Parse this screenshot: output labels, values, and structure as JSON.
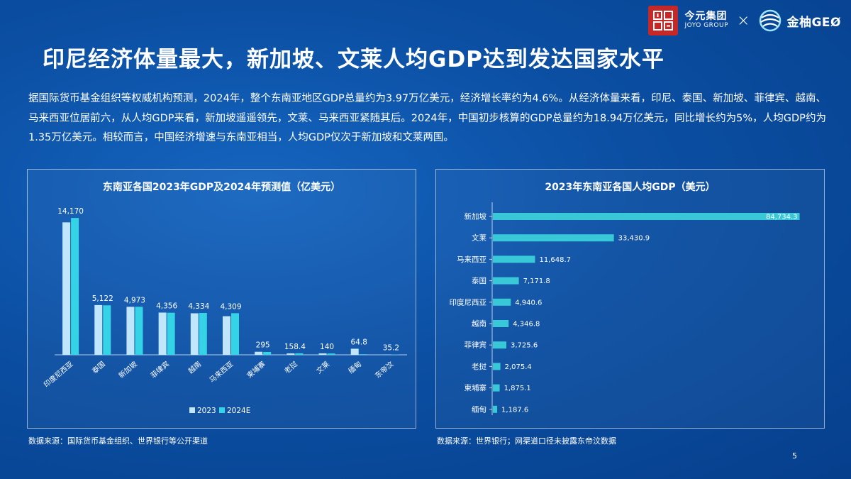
{
  "header": {
    "brand_cn": "今元集团",
    "brand_en": "JOYO GROUP",
    "times": "×",
    "partner": "金柚GEØ"
  },
  "title": "印尼经济体量最大，新加坡、文莱人均GDP达到发达国家水平",
  "paragraph": "据国际货币基金组织等权威机构预测，2024年，整个东南亚地区GDP总量约为3.97万亿美元，经济增长率约为4.6%。从经济体量来看，印尼、泰国、新加坡、菲律宾、越南、马来西亚位居前六，从人均GDP来看，新加坡遥遥领先，文莱、马来西亚紧随其后。2024年，中国初步核算的GDP总量约为18.94万亿美元，同比增长约为5%，人均GDP约为1.35万亿美元。相较而言，中国经济增速与东南亚相当，人均GDP仅次于新加坡和文莱两国。",
  "colors": {
    "bar_2023": "#bfe6fb",
    "bar_2024": "#35d3e6",
    "bar_gdp_pc": "#38c8d8"
  },
  "chart_data": [
    {
      "type": "bar",
      "title": "东南亚各国2023年GDP及2024年预测值（亿美元）",
      "categories": [
        "印度尼西亚",
        "泰国",
        "新加坡",
        "菲律宾",
        "越南",
        "马来西亚",
        "柬埔寨",
        "老挝",
        "文莱",
        "缅甸",
        "东帝汶"
      ],
      "series": [
        {
          "name": "2023",
          "values": [
            13712,
            5149,
            4970,
            4372,
            4298,
            3997,
            315,
            150,
            152,
            630,
            20
          ]
        },
        {
          "name": "2024E",
          "values": [
            14170,
            5122,
            4973,
            4356,
            4334,
            4309,
            295,
            158.4,
            140,
            64.8,
            35.2
          ]
        }
      ],
      "labels": [
        "14,170",
        "5,122",
        "4,973",
        "4,356",
        "4,334",
        "4,309",
        "295",
        "158.4",
        "140",
        "64.8",
        "35.2"
      ],
      "legend": "bottom",
      "ylim": [
        0,
        15500
      ],
      "grid": false
    },
    {
      "type": "bar",
      "orientation": "horizontal",
      "title": "2023年东南亚各国人均GDP（美元）",
      "categories": [
        "新加坡",
        "文莱",
        "马来西亚",
        "泰国",
        "印度尼西亚",
        "越南",
        "菲律宾",
        "老挝",
        "柬埔寨",
        "缅甸"
      ],
      "values": [
        84734.3,
        33430.9,
        11648.7,
        7171.8,
        4940.6,
        4346.8,
        3725.6,
        2075.4,
        1875.1,
        1187.6
      ],
      "labels": [
        "84,734.3",
        "33,430.9",
        "11,648.7",
        "7,171.8",
        "4,940.6",
        "4,346.8",
        "3,725.6",
        "2,075.4",
        "1,875.1",
        "1,187.6"
      ],
      "xlim": [
        0,
        86000
      ],
      "grid": false
    }
  ],
  "sources": {
    "left": "数据来源：国际货币基金组织、世界银行等公开渠道",
    "right": "数据来源：世界银行；网渠道口径未披露东帝汶数据"
  },
  "page_number": "5"
}
